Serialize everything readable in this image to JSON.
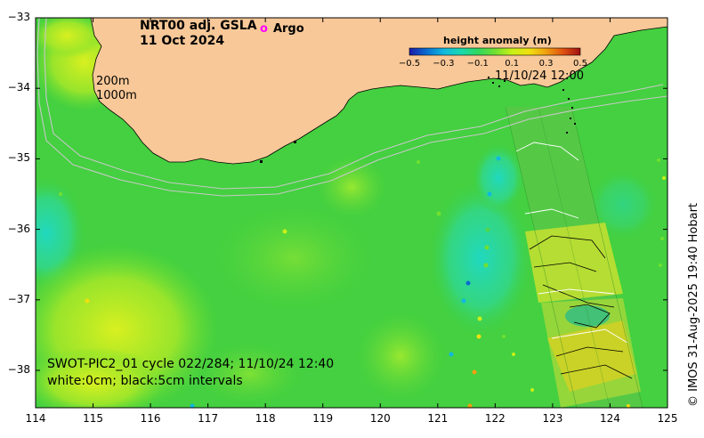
{
  "map": {
    "title_line1": "NRT00 adj. GSLA",
    "title_line2": "11 Oct 2024",
    "argo_symbol": "o",
    "argo_label": "Argo",
    "colorbar": {
      "title": "height anomaly (m)",
      "tick_labels": [
        "−0.5",
        "−0.3",
        "−0.1",
        "0.1",
        "0.3",
        "0.5"
      ],
      "colors": [
        "#1a1aa8",
        "#0a6cd0",
        "#10b8e0",
        "#18d8b0",
        "#30d860",
        "#70e030",
        "#c8f018",
        "#f0e010",
        "#f0a010",
        "#e05010",
        "#a01010"
      ]
    },
    "swath_timestamp": "11/10/24 12:00",
    "contour_labels": [
      "200m",
      "1000m"
    ],
    "pass_info": "SWOT-PIC2_01 cycle 022/284; 11/10/24 12:40",
    "contour_info": "white:0cm; black:5cm intervals",
    "credit": "© IMOS 31-Aug-2025 19:40 Hobart",
    "x_ticks": [
      "114",
      "115",
      "116",
      "117",
      "118",
      "119",
      "120",
      "121",
      "122",
      "123",
      "124",
      "125"
    ],
    "y_ticks": [
      "−33",
      "−34",
      "−35",
      "−36",
      "−37",
      "−38"
    ],
    "colors": {
      "land": "#f8c898",
      "ocean": "#40d040",
      "argo": "#ff00ff"
    }
  }
}
